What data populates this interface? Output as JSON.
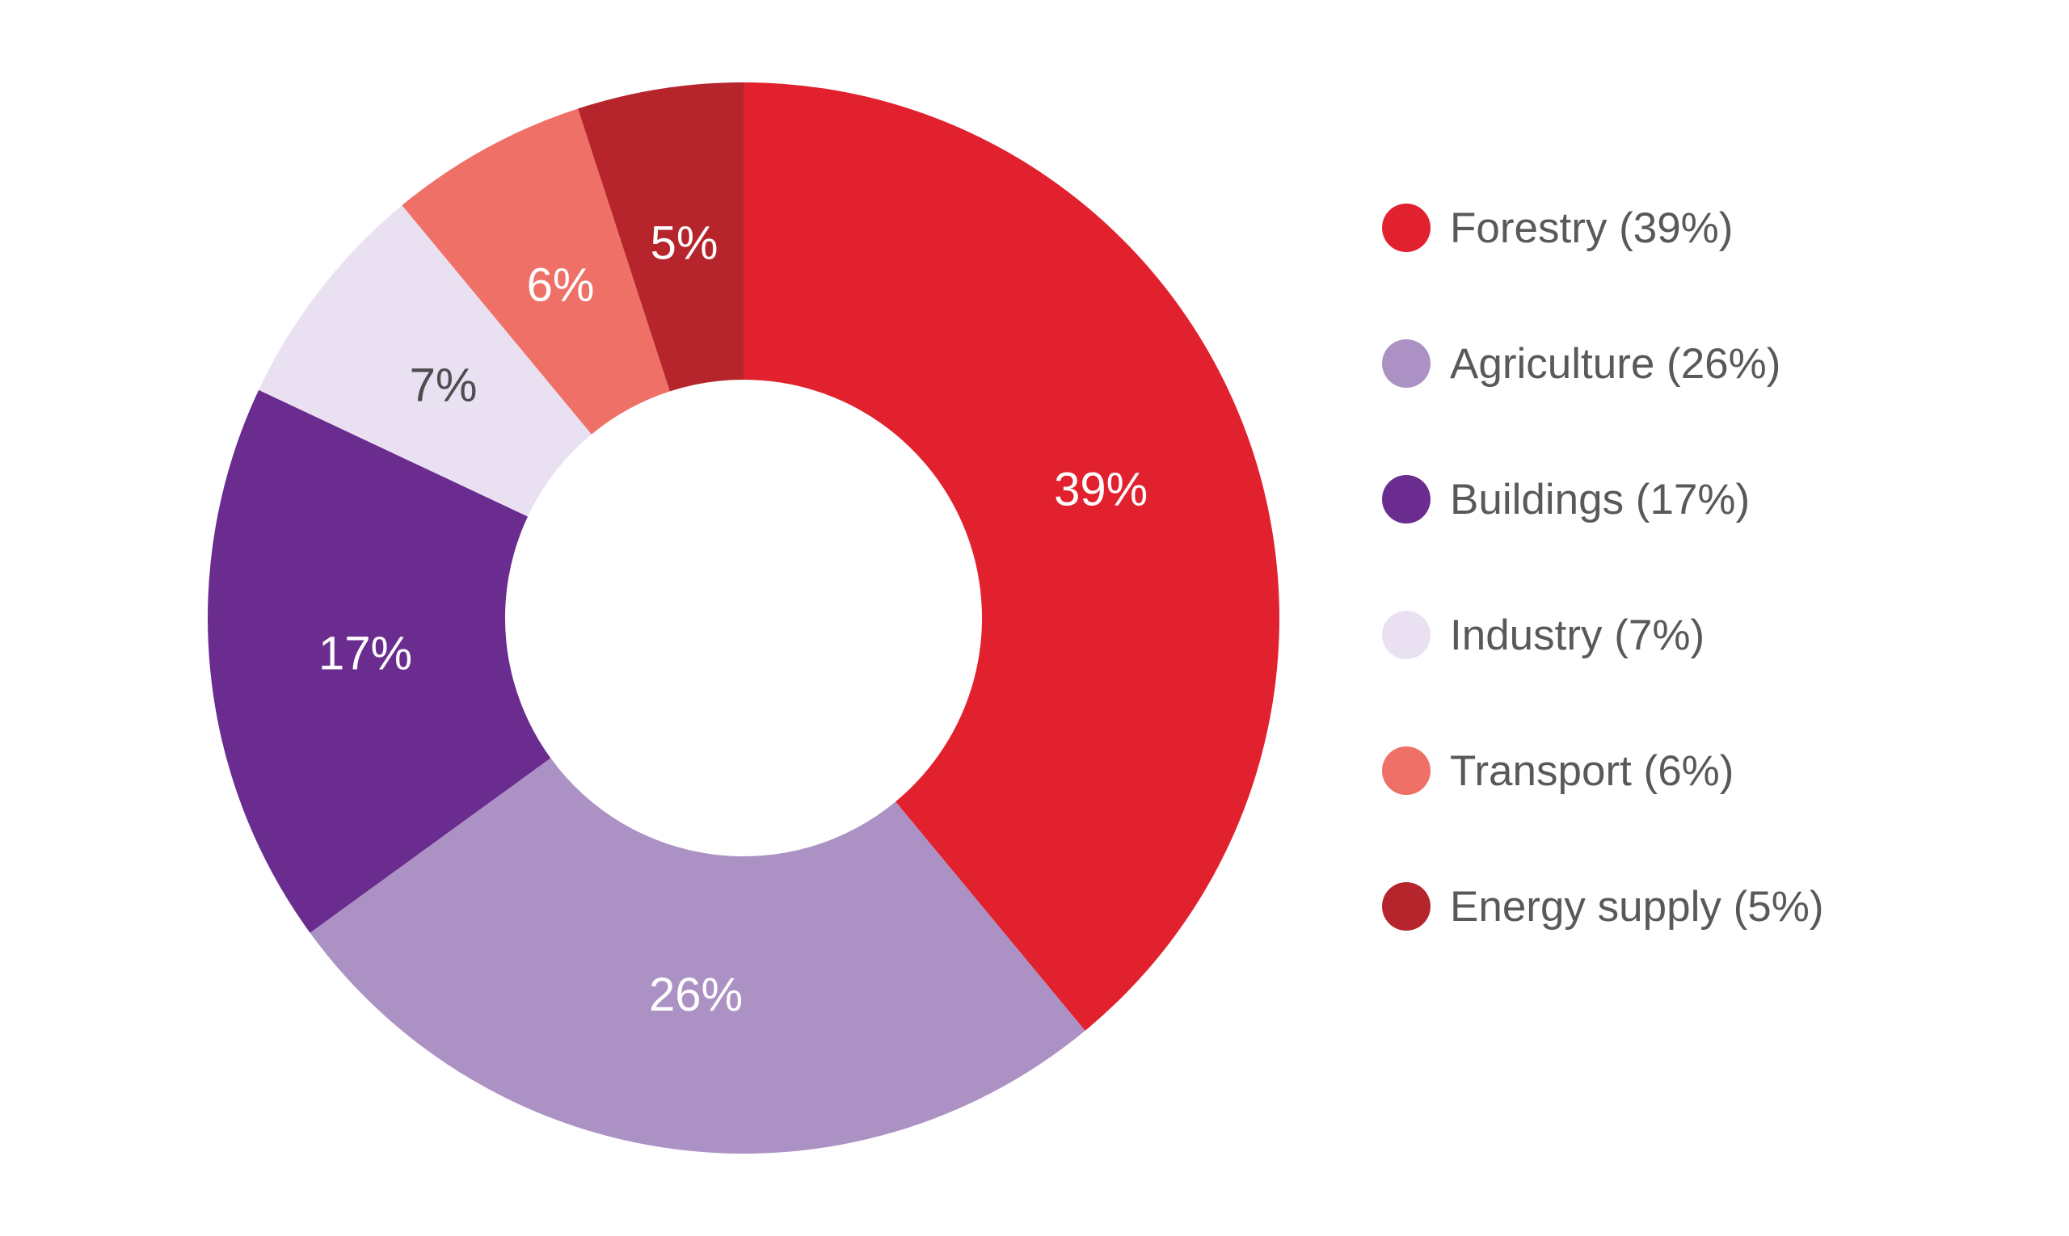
{
  "chart_data": {
    "type": "pie",
    "variant": "donut",
    "title": "",
    "start_angle_deg": 0,
    "direction": "clockwise",
    "donut_hole_ratio": 0.445,
    "background_color": "#FFFFFF",
    "legend_position": "right",
    "legend_text_color": "#58595B",
    "categories": [
      "Forestry",
      "Agriculture",
      "Buildings",
      "Industry",
      "Transport",
      "Energy supply"
    ],
    "values": [
      39,
      26,
      17,
      7,
      6,
      5
    ],
    "series": [
      {
        "label": "Forestry",
        "value": 39,
        "color": "#E2212E",
        "slice_label": "39%",
        "slice_label_color": "#FFFFFF"
      },
      {
        "label": "Agriculture",
        "value": 26,
        "color": "#AC92C4",
        "slice_label": "26%",
        "slice_label_color": "#FFFFFF"
      },
      {
        "label": "Buildings",
        "value": 17,
        "color": "#6B2C90",
        "slice_label": "17%",
        "slice_label_color": "#FFFFFF"
      },
      {
        "label": "Industry",
        "value": 7,
        "color": "#E9E1F2",
        "slice_label": "7%",
        "slice_label_color": "#4D4D4F"
      },
      {
        "label": "Transport",
        "value": 6,
        "color": "#EE7066",
        "slice_label": "6%",
        "slice_label_color": "#FFFFFF"
      },
      {
        "label": "Energy supply",
        "value": 5,
        "color": "#B6252C",
        "slice_label": "5%",
        "slice_label_color": "#FFFFFF"
      }
    ],
    "legend_entries": [
      {
        "label": "Forestry (39%)",
        "color": "#E2212E"
      },
      {
        "label": "Agriculture (26%)",
        "color": "#AC92C4"
      },
      {
        "label": "Buildings (17%)",
        "color": "#6B2C90"
      },
      {
        "label": "Industry (7%)",
        "color": "#E9E1F2"
      },
      {
        "label": "Transport (6%)",
        "color": "#EE7066"
      },
      {
        "label": "Energy supply (5%)",
        "color": "#B6252C"
      }
    ]
  }
}
